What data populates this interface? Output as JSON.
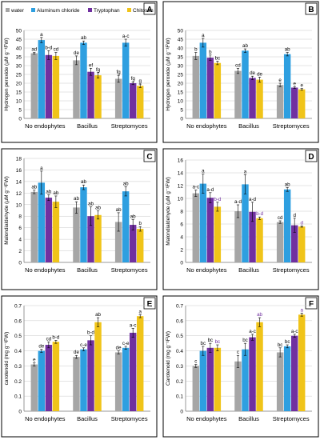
{
  "legend": [
    {
      "name": "water",
      "color": "#a6a6a6"
    },
    {
      "name": "Aluminum chloride",
      "color": "#2e9fe0"
    },
    {
      "name": "Tryptophan",
      "color": "#7030a0"
    },
    {
      "name": "Chitosan",
      "color": "#f0c419"
    }
  ],
  "chart_data": [
    {
      "panel": "A",
      "type": "bar",
      "categories": [
        "No endophytes",
        "Bacillus",
        "Streptomyces"
      ],
      "ylabel": "Hydrogen peroxide (µM g⁻¹FW)",
      "ylim": [
        0,
        50
      ],
      "yticks": [
        0,
        5,
        10,
        15,
        20,
        25,
        30,
        35,
        40,
        45,
        50
      ],
      "legend": "top",
      "series": [
        {
          "name": "water",
          "values": [
            37,
            33,
            22.5
          ],
          "errors": [
            0.5,
            2.5,
            2
          ],
          "letters": [
            "ad",
            "de",
            "fg"
          ]
        },
        {
          "name": "Aluminum chloride",
          "values": [
            44.5,
            43,
            43
          ],
          "errors": [
            1.5,
            1,
            2
          ],
          "letters": [
            "a",
            "ab",
            "a-c"
          ]
        },
        {
          "name": "Tryptophan",
          "values": [
            36,
            26.5,
            20
          ],
          "errors": [
            2.5,
            2,
            0.8
          ],
          "letters": [
            "b-d",
            "ef",
            "fg"
          ]
        },
        {
          "name": "Chitosan",
          "values": [
            35.5,
            24.5,
            18.5
          ],
          "errors": [
            2,
            1.5,
            1
          ],
          "letters": [
            "cd",
            "fg",
            "g"
          ]
        }
      ]
    },
    {
      "panel": "B",
      "type": "bar",
      "categories": [
        "No endophytes",
        "Bacillus",
        "Streptomyces"
      ],
      "ylabel": "Hydrogen peroxide (µM g⁻¹FW)",
      "ylim": [
        0,
        50
      ],
      "yticks": [
        0,
        5,
        10,
        15,
        20,
        25,
        30,
        35,
        40,
        45,
        50
      ],
      "series": [
        {
          "name": "water",
          "values": [
            35.5,
            27,
            19
          ],
          "errors": [
            2,
            1.5,
            1
          ],
          "letters": [
            "b",
            "cd",
            "e"
          ]
        },
        {
          "name": "Aluminum chloride",
          "values": [
            43,
            38.5,
            36.5
          ],
          "errors": [
            2.5,
            1,
            1
          ],
          "letters": [
            "a",
            "ab",
            "ab"
          ]
        },
        {
          "name": "Tryptophan",
          "values": [
            34.5,
            23,
            17.5
          ],
          "errors": [
            1.5,
            1,
            0.5
          ],
          "letters": [
            "b",
            "de",
            "e"
          ]
        },
        {
          "name": "Chitosan",
          "values": [
            31.5,
            22,
            16.5
          ],
          "errors": [
            1,
            1.5,
            0.5
          ],
          "letters": [
            "bc",
            "de",
            "e"
          ]
        }
      ]
    },
    {
      "panel": "C",
      "type": "bar",
      "categories": [
        "No endophytes",
        "Bacillus",
        "Streptomyces"
      ],
      "ylabel": "Malondialdehyde (µM g⁻¹FW)",
      "ylim": [
        0,
        18
      ],
      "yticks": [
        0,
        2,
        4,
        6,
        8,
        10,
        12,
        14,
        16,
        18
      ],
      "series": [
        {
          "name": "water",
          "values": [
            12.2,
            9.5,
            7
          ],
          "errors": [
            0.3,
            1,
            1.6
          ],
          "letters": [
            "ab",
            "ab",
            "ab"
          ]
        },
        {
          "name": "Aluminum chloride",
          "values": [
            13.8,
            13,
            12.3
          ],
          "errors": [
            2,
            0.4,
            0.8
          ],
          "letters": [
            "a",
            "ab",
            "ab"
          ]
        },
        {
          "name": "Tryptophan",
          "values": [
            11.2,
            8,
            6.5
          ],
          "errors": [
            0.5,
            1.6,
            0.9
          ],
          "letters": [
            "ab",
            "ab",
            "ab"
          ]
        },
        {
          "name": "Chitosan",
          "values": [
            10.5,
            8.2,
            5.8
          ],
          "errors": [
            1,
            0.7,
            0.4
          ],
          "letters": [
            "ab",
            "ab",
            "b"
          ]
        }
      ]
    },
    {
      "panel": "D",
      "type": "bar",
      "categories": [
        "No endophytes",
        "Bacillus",
        "Streptomyces"
      ],
      "ylabel": "Malondialdehyde (µM g⁻¹FW)",
      "ylim": [
        0,
        16
      ],
      "yticks": [
        0,
        2,
        4,
        6,
        8,
        10,
        12,
        14,
        16
      ],
      "series": [
        {
          "name": "water",
          "values": [
            10.8,
            8,
            6.3
          ],
          "errors": [
            0.5,
            1,
            0.2
          ],
          "letters": [
            "a-c",
            "a-d",
            "cd"
          ]
        },
        {
          "name": "Aluminum chloride",
          "values": [
            12.3,
            12.2,
            11.4
          ],
          "errors": [
            1.5,
            1.5,
            0.3
          ],
          "letters": [
            "a",
            "a",
            "ab"
          ]
        },
        {
          "name": "Tryptophan",
          "values": [
            10.1,
            7.9,
            5.8
          ],
          "errors": [
            0.8,
            1.5,
            1.1
          ],
          "letters": [
            "a-d",
            "a-d",
            "d"
          ]
        },
        {
          "name": "Chitosan",
          "values": [
            8.7,
            6.9,
            5.6
          ],
          "errors": [
            0.7,
            0.2,
            0.1
          ],
          "letters": [
            "b-d",
            "b-d",
            "d"
          ]
        }
      ]
    },
    {
      "panel": "E",
      "type": "bar",
      "categories": [
        "No endophytes",
        "Bacillus",
        "Streptomyces"
      ],
      "ylabel": "carotenoid (mg g⁻¹FW)",
      "ylim": [
        0,
        0.7
      ],
      "yticks": [
        0,
        0.1,
        0.2,
        0.3,
        0.4,
        0.5,
        0.6,
        0.7
      ],
      "series": [
        {
          "name": "water",
          "values": [
            0.31,
            0.36,
            0.39
          ],
          "errors": [
            0.01,
            0.01,
            0.01
          ],
          "letters": [
            "e",
            "de",
            "de"
          ]
        },
        {
          "name": "Aluminum chloride",
          "values": [
            0.4,
            0.41,
            0.42
          ],
          "errors": [
            0.01,
            0.01,
            0.01
          ],
          "letters": [
            "de",
            "c-e",
            "c-e"
          ]
        },
        {
          "name": "Tryptophan",
          "values": [
            0.44,
            0.47,
            0.52
          ],
          "errors": [
            0.02,
            0.03,
            0.03
          ],
          "letters": [
            "cd",
            "b-d",
            "a-c"
          ]
        },
        {
          "name": "Chitosan",
          "values": [
            0.46,
            0.59,
            0.63
          ],
          "errors": [
            0.01,
            0.03,
            0.01
          ],
          "letters": [
            "b-d",
            "ab",
            "a"
          ]
        }
      ]
    },
    {
      "panel": "F",
      "type": "bar",
      "categories": [
        "No endophytes",
        "Bacillus",
        "Streptomyces"
      ],
      "ylabel": "Carotenoid (mg g⁻¹FW)",
      "ylim": [
        0,
        0.7
      ],
      "yticks": [
        0,
        0.1,
        0.2,
        0.3,
        0.4,
        0.5,
        0.6,
        0.7
      ],
      "series": [
        {
          "name": "water",
          "values": [
            0.3,
            0.33,
            0.39
          ],
          "errors": [
            0.01,
            0.04,
            0.03
          ],
          "letters": [
            "c",
            "c",
            "bc"
          ]
        },
        {
          "name": "Aluminum chloride",
          "values": [
            0.4,
            0.41,
            0.43
          ],
          "errors": [
            0.03,
            0.04,
            0.01
          ],
          "letters": [
            "bc",
            "bc",
            "bc"
          ]
        },
        {
          "name": "Tryptophan",
          "values": [
            0.42,
            0.49,
            0.5
          ],
          "errors": [
            0.03,
            0.02,
            0.01
          ],
          "letters": [
            "bc",
            "a-c",
            "a-c"
          ]
        },
        {
          "name": "Chitosan",
          "values": [
            0.42,
            0.59,
            0.64
          ],
          "errors": [
            0.02,
            0.03,
            0.01
          ],
          "letters": [
            "bc",
            "ab",
            "a"
          ]
        }
      ]
    }
  ]
}
